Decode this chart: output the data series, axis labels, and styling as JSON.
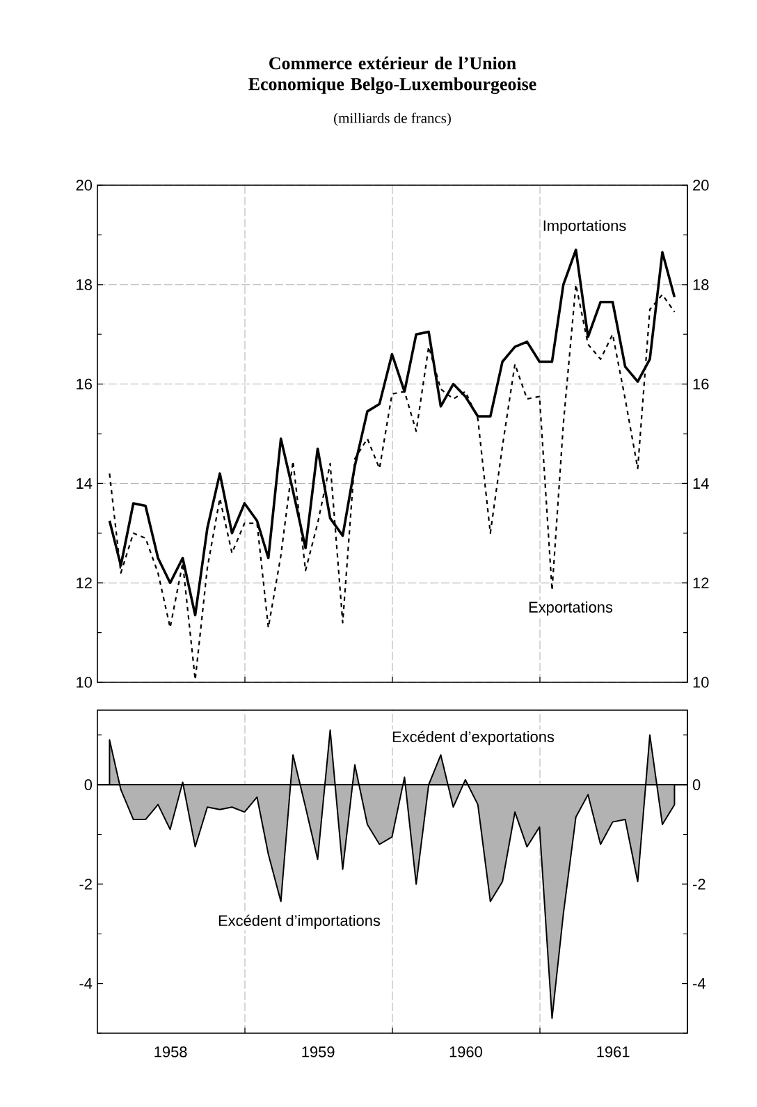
{
  "chart_data": [
    {
      "type": "line",
      "title": "Commerce extérieur de l’Union Economique Belgo-Luxembourgeoise",
      "subtitle": "(milliards de francs)",
      "x": [
        "1958-01-31",
        "1958-02-28",
        "1958-03-31",
        "1958-04-30",
        "1958-05-31",
        "1958-06-30",
        "1958-07-31",
        "1958-08-31",
        "1958-09-30",
        "1958-10-31",
        "1958-11-30",
        "1958-12-31",
        "1959-01-31",
        "1959-02-28",
        "1959-03-31",
        "1959-04-30",
        "1959-05-31",
        "1959-06-30",
        "1959-07-31",
        "1959-08-31",
        "1959-09-30",
        "1959-10-31",
        "1959-11-30",
        "1959-12-31",
        "1960-01-31",
        "1960-02-29",
        "1960-03-31",
        "1960-04-30",
        "1960-05-31",
        "1960-06-30",
        "1960-07-31",
        "1960-08-31",
        "1960-09-30",
        "1960-10-31",
        "1960-11-30",
        "1960-12-31",
        "1961-01-31",
        "1961-02-28",
        "1961-03-31",
        "1961-04-30",
        "1961-05-31",
        "1961-06-30",
        "1961-07-31",
        "1961-08-31",
        "1961-09-30",
        "1961-10-31",
        "1961-11-30"
      ],
      "series": [
        {
          "name": "Importations",
          "color": "#000000",
          "line_style": "solid",
          "values": [
            13.25,
            12.35,
            13.6,
            13.55,
            12.5,
            12.0,
            12.5,
            11.35,
            13.1,
            14.2,
            13.0,
            13.6,
            13.25,
            12.5,
            14.9,
            13.85,
            12.7,
            14.7,
            13.3,
            12.95,
            14.35,
            15.45,
            15.6,
            16.6,
            15.85,
            17.0,
            17.05,
            15.55,
            16.0,
            15.75,
            15.35,
            15.35,
            16.45,
            16.75,
            16.85,
            16.45,
            16.45,
            18.0,
            18.7,
            16.95,
            17.65,
            17.65,
            16.35,
            16.05,
            16.5,
            18.65,
            17.75
          ]
        },
        {
          "name": "Exportations",
          "color": "#000000",
          "line_style": "dashed",
          "values": [
            14.2,
            12.2,
            13.0,
            12.9,
            12.2,
            11.1,
            12.4,
            10.05,
            12.3,
            13.7,
            12.6,
            13.2,
            13.2,
            11.1,
            12.55,
            14.45,
            12.25,
            13.2,
            14.4,
            11.2,
            14.5,
            14.9,
            14.3,
            15.8,
            15.85,
            15.05,
            16.75,
            15.9,
            15.7,
            15.85,
            15.3,
            13.0,
            14.75,
            16.4,
            15.7,
            15.75,
            11.85,
            15.2,
            18.0,
            16.8,
            16.5,
            17.0,
            15.7,
            14.3,
            17.5,
            17.8,
            17.45
          ]
        }
      ],
      "xlim": [
        "1958-01-01",
        "1962-01-01"
      ],
      "xticks": [
        {
          "value": "1959-01-01",
          "label": null
        },
        {
          "value": "1960-01-01",
          "label": null
        },
        {
          "value": "1961-01-01",
          "label": null
        }
      ],
      "ylim": [
        10,
        20
      ],
      "yticks": [
        10,
        {
          "value": 11,
          "label": null
        },
        12,
        {
          "value": 13,
          "label": null
        },
        14,
        {
          "value": 15,
          "label": null
        },
        16,
        {
          "value": 17,
          "label": null
        },
        18,
        {
          "value": 19,
          "label": null
        },
        20
      ],
      "y2lim": [
        10,
        20
      ],
      "y2ticks": [
        10,
        {
          "value": 11,
          "label": null
        },
        12,
        {
          "value": 13,
          "label": null
        },
        14,
        {
          "value": 15,
          "label": null
        },
        16,
        {
          "value": 17,
          "label": null
        },
        18,
        {
          "value": 19,
          "label": null
        },
        20
      ],
      "grid": true,
      "tick_labels": "y"
    },
    {
      "type": "area",
      "x": [
        "1958-01-31",
        "1958-02-28",
        "1958-03-31",
        "1958-04-30",
        "1958-05-31",
        "1958-06-30",
        "1958-07-31",
        "1958-08-31",
        "1958-09-30",
        "1958-10-31",
        "1958-11-30",
        "1958-12-31",
        "1959-01-31",
        "1959-02-28",
        "1959-03-31",
        "1959-04-30",
        "1959-05-31",
        "1959-06-30",
        "1959-07-31",
        "1959-08-31",
        "1959-09-30",
        "1959-10-31",
        "1959-11-30",
        "1959-12-31",
        "1960-01-31",
        "1960-02-29",
        "1960-03-31",
        "1960-04-30",
        "1960-05-31",
        "1960-06-30",
        "1960-07-31",
        "1960-08-31",
        "1960-09-30",
        "1960-10-31",
        "1960-11-30",
        "1960-12-31",
        "1961-01-31",
        "1961-02-28",
        "1961-03-31",
        "1961-04-30",
        "1961-05-31",
        "1961-06-30",
        "1961-07-31",
        "1961-08-31",
        "1961-09-30",
        "1961-10-31",
        "1961-11-30"
      ],
      "series": [
        {
          "color": "#000000",
          "values": [
            0.9,
            -0.1,
            -0.7,
            -0.7,
            -0.4,
            -0.9,
            0.05,
            -1.25,
            -0.45,
            -0.5,
            -0.45,
            -0.55,
            -0.25,
            -1.4,
            -2.35,
            0.6,
            -0.45,
            -1.5,
            1.1,
            -1.7,
            0.4,
            -0.8,
            -1.2,
            -1.05,
            0.15,
            -2.0,
            0.0,
            0.6,
            -0.45,
            0.1,
            -0.4,
            -2.35,
            -1.95,
            -0.55,
            -1.25,
            -0.85,
            -4.7,
            -2.6,
            -0.65,
            -0.2,
            -1.2,
            -0.75,
            -0.7,
            -1.95,
            1.0,
            -0.8,
            -0.4
          ]
        }
      ],
      "annotations": [
        "Excédent d’exportations",
        "Excédent d’importations"
      ],
      "xlim": [
        "1958-01-01",
        "1962-01-01"
      ],
      "xticks": [
        {
          "value": "1958-07-01",
          "label": "1958"
        },
        {
          "value": "1959-01-01",
          "label": null
        },
        {
          "value": "1959-07-01",
          "label": "1959"
        },
        {
          "value": "1960-01-01",
          "label": null
        },
        {
          "value": "1960-07-01",
          "label": "1960"
        },
        {
          "value": "1961-01-01",
          "label": null
        },
        {
          "value": "1961-07-01",
          "label": "1961"
        }
      ],
      "ylim": [
        -5,
        1.5
      ],
      "yticks": [
        {
          "value": -5,
          "label": null
        },
        -4,
        {
          "value": -3,
          "label": null
        },
        -2,
        {
          "value": -1,
          "label": null
        },
        0,
        {
          "value": 1,
          "label": null
        }
      ],
      "y2lim": [
        -5,
        1.5
      ],
      "y2ticks": [
        {
          "value": -5,
          "label": null
        },
        -4,
        {
          "value": -3,
          "label": null
        },
        -2,
        {
          "value": -1,
          "label": null
        },
        0,
        {
          "value": 1,
          "label": null
        }
      ],
      "ref_lines": [
        {
          "axis": "y",
          "value": 0
        }
      ],
      "grid": "x"
    }
  ]
}
